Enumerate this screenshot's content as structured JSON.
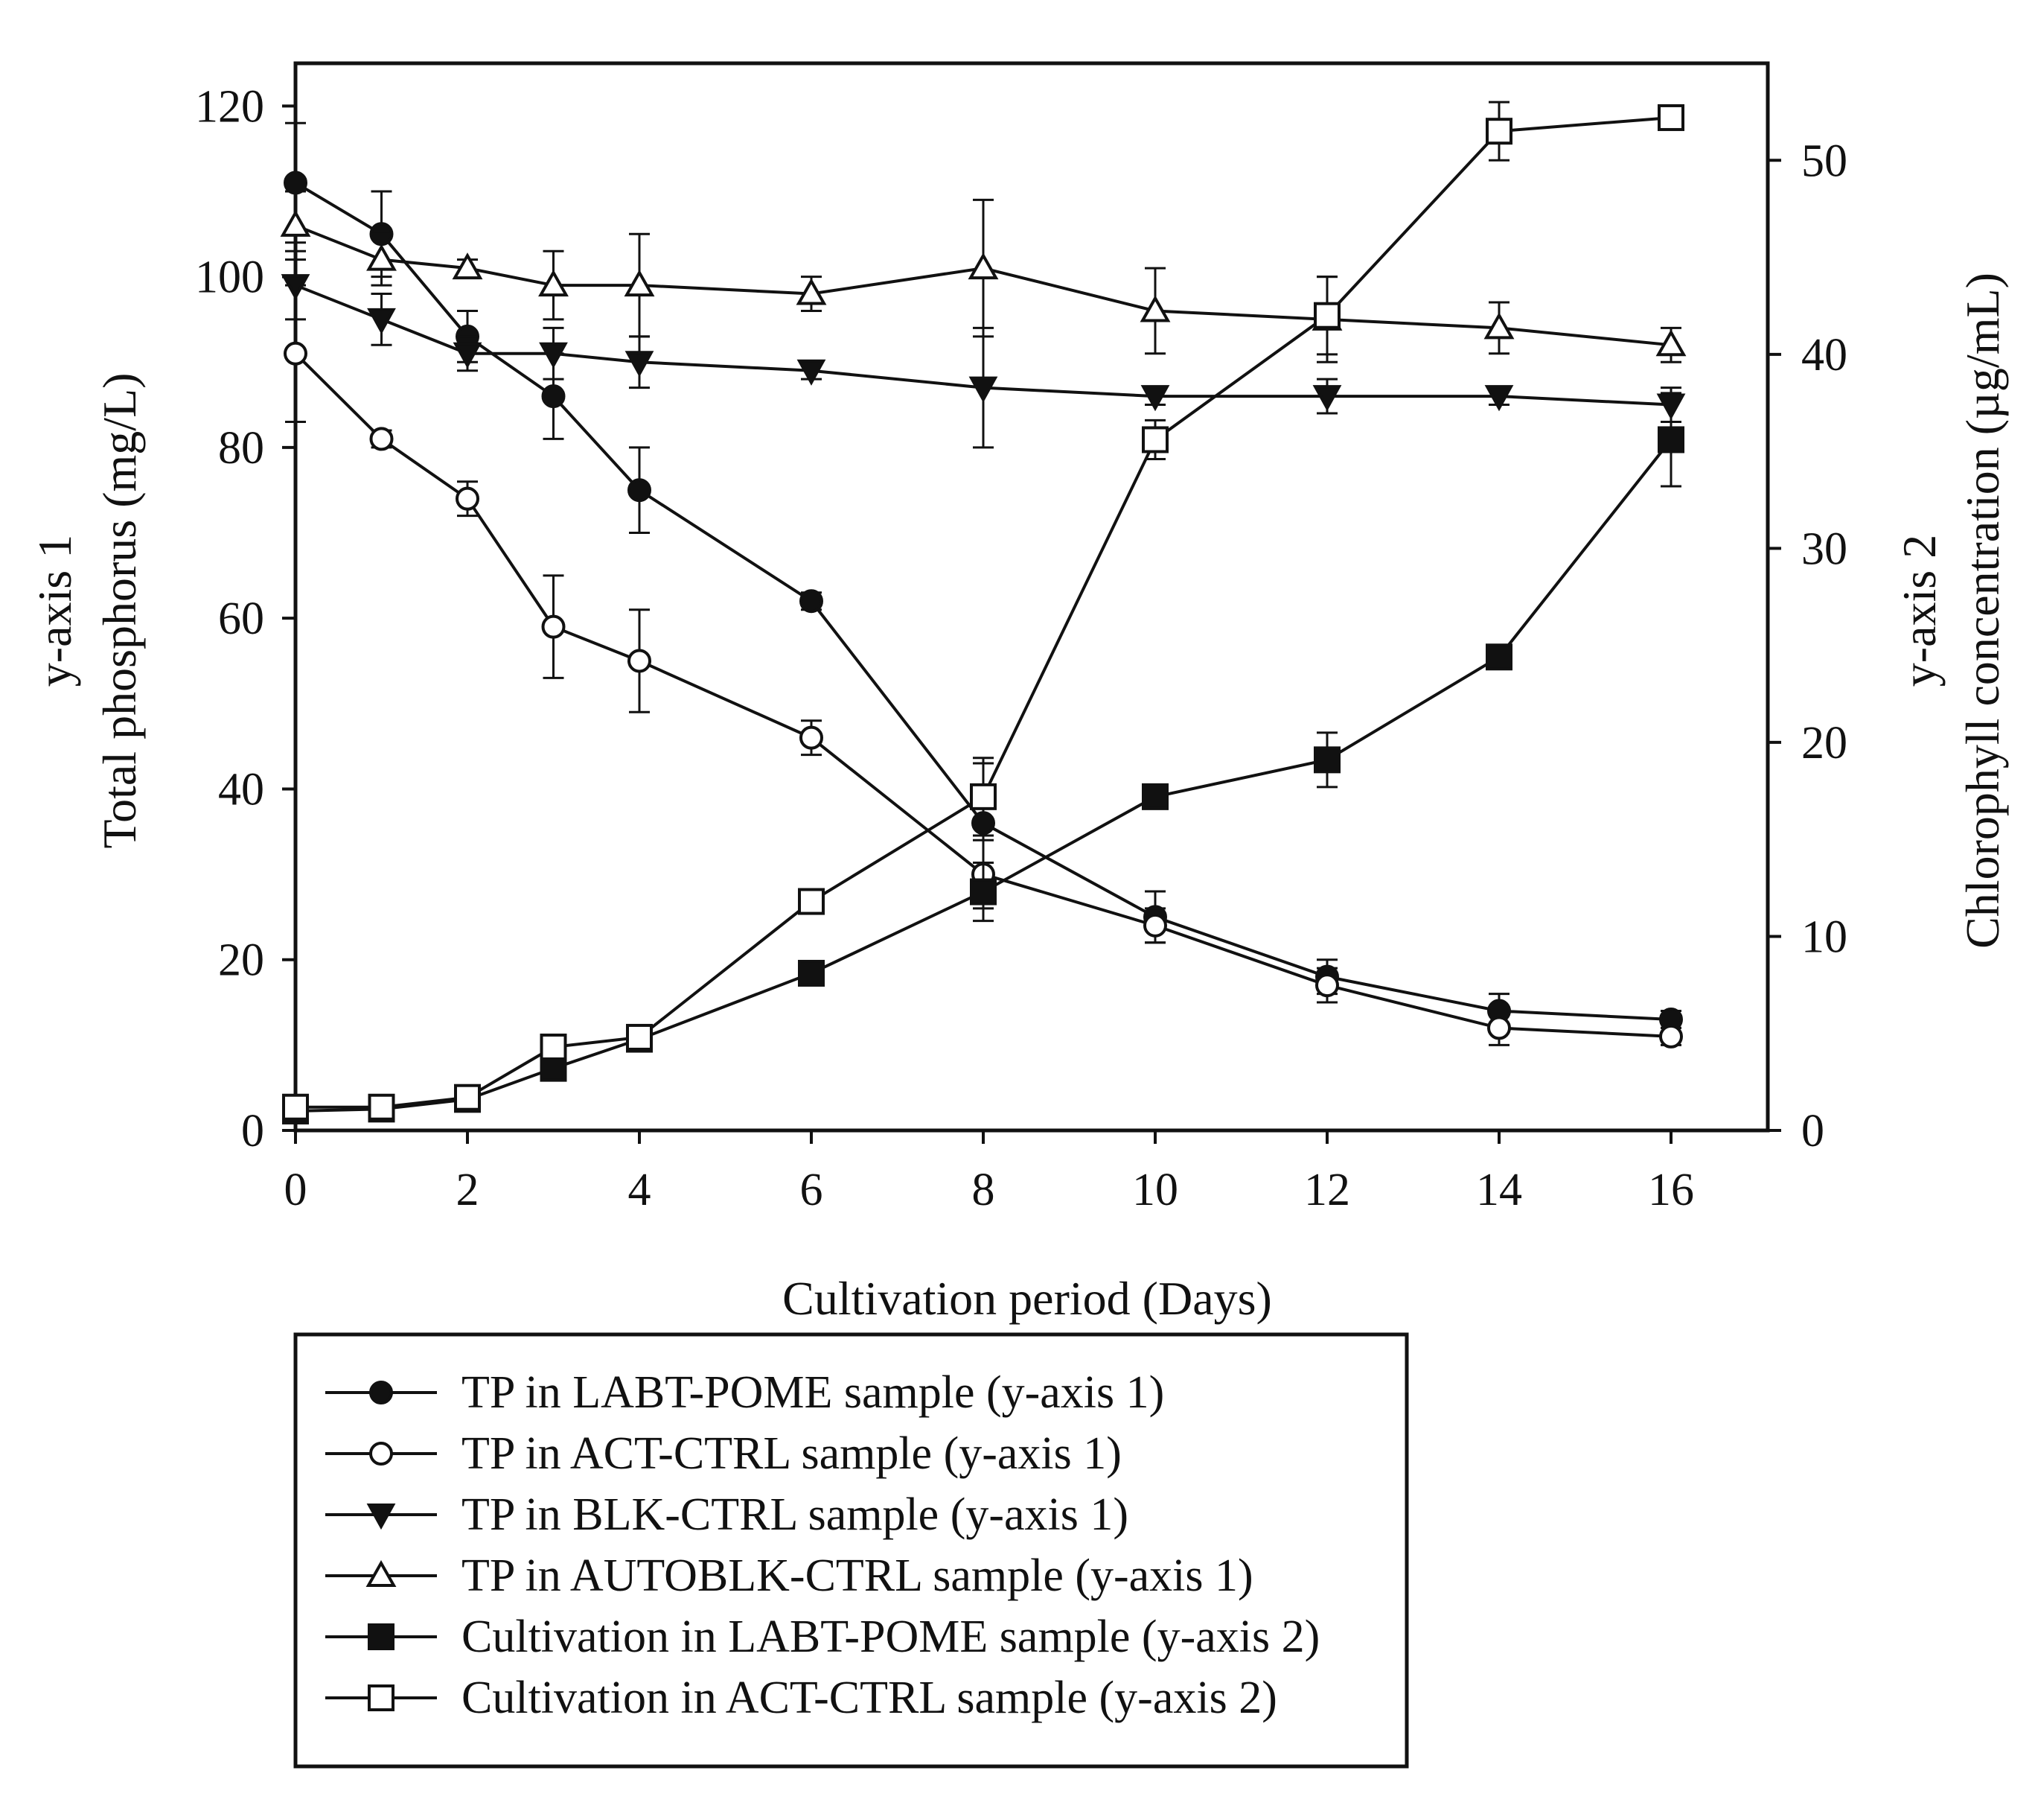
{
  "chart_data": {
    "type": "line",
    "title": "",
    "xlabel": "Cultivation period (Days)",
    "x_ticks": [
      0,
      2,
      4,
      6,
      8,
      10,
      12,
      14,
      16
    ],
    "y1": {
      "title_line1": "y-axis 1",
      "title_line2": "Total phosphorus (mg/L)",
      "ylim": [
        0,
        125
      ],
      "ticks": [
        0,
        20,
        40,
        60,
        80,
        100,
        120
      ]
    },
    "y2": {
      "title_line1": "y-axis 2",
      "title_line2": "Chlorophyll concentration (µg/mL)",
      "ylim": [
        0,
        55
      ],
      "ticks": [
        0,
        10,
        20,
        30,
        40,
        50
      ]
    },
    "legend_position": "bottom",
    "series": [
      {
        "name": "TP in LABT-POME sample (y-axis 1)",
        "axis": "y1",
        "marker": "circle-filled",
        "x": [
          0,
          1,
          2,
          3,
          4,
          6,
          8,
          10,
          12,
          14,
          16
        ],
        "values": [
          111,
          105,
          93,
          86,
          75,
          62,
          36,
          25,
          18,
          14,
          13
        ],
        "errors": [
          7,
          5,
          3,
          5,
          5,
          1,
          7,
          3,
          2,
          2,
          1
        ]
      },
      {
        "name": "TP in ACT-CTRL sample (y-axis 1)",
        "axis": "y1",
        "marker": "circle-open",
        "x": [
          0,
          1,
          2,
          3,
          4,
          6,
          8,
          10,
          12,
          14,
          16
        ],
        "values": [
          91,
          81,
          74,
          59,
          55,
          46,
          30,
          24,
          17,
          12,
          11
        ],
        "errors": [
          8,
          1,
          2,
          6,
          6,
          2,
          4,
          2,
          2,
          2,
          1
        ]
      },
      {
        "name": "TP in BLK-CTRL sample (y-axis 1)",
        "axis": "y1",
        "marker": "triangle-down-filled",
        "x": [
          0,
          1,
          2,
          3,
          4,
          6,
          8,
          10,
          12,
          14,
          16
        ],
        "values": [
          99,
          95,
          91,
          91,
          90,
          89,
          87,
          86,
          86,
          86,
          85
        ],
        "errors": [
          4,
          3,
          2,
          3,
          3,
          1,
          7,
          1,
          2,
          1,
          2
        ]
      },
      {
        "name": "TP in AUTOBLK-CTRL sample (y-axis 1)",
        "axis": "y1",
        "marker": "triangle-open",
        "x": [
          0,
          1,
          2,
          3,
          4,
          6,
          8,
          10,
          12,
          14,
          16
        ],
        "values": [
          106,
          102,
          101,
          99,
          99,
          98,
          101,
          96,
          95,
          94,
          92
        ],
        "errors": [
          4,
          3,
          1,
          4,
          6,
          2,
          8,
          5,
          5,
          3,
          2
        ]
      },
      {
        "name": "Cultivation in LABT-POME sample (y-axis 2)",
        "axis": "y2",
        "marker": "square-filled",
        "x": [
          0,
          1,
          2,
          3,
          4,
          6,
          8,
          10,
          12,
          14,
          16
        ],
        "values": [
          1.0,
          1.1,
          1.6,
          3.2,
          4.7,
          8.1,
          12.3,
          17.2,
          19.1,
          24.4,
          35.6
        ],
        "errors": [
          0.2,
          0.2,
          0.3,
          0.4,
          0.4,
          0.5,
          1.5,
          0.5,
          1.4,
          0.5,
          2.4
        ]
      },
      {
        "name": "Cultivation in ACT-CTRL sample (y-axis 2)",
        "axis": "y2",
        "marker": "square-open",
        "x": [
          0,
          1,
          2,
          3,
          4,
          6,
          8,
          10,
          12,
          14,
          16
        ],
        "values": [
          1.2,
          1.2,
          1.7,
          4.3,
          4.8,
          11.8,
          17.2,
          35.6,
          42.0,
          51.5,
          52.2
        ],
        "errors": [
          0.2,
          0.2,
          0.3,
          0.4,
          0.4,
          0.5,
          2.0,
          1.0,
          2.0,
          1.5,
          0.5
        ]
      }
    ]
  }
}
